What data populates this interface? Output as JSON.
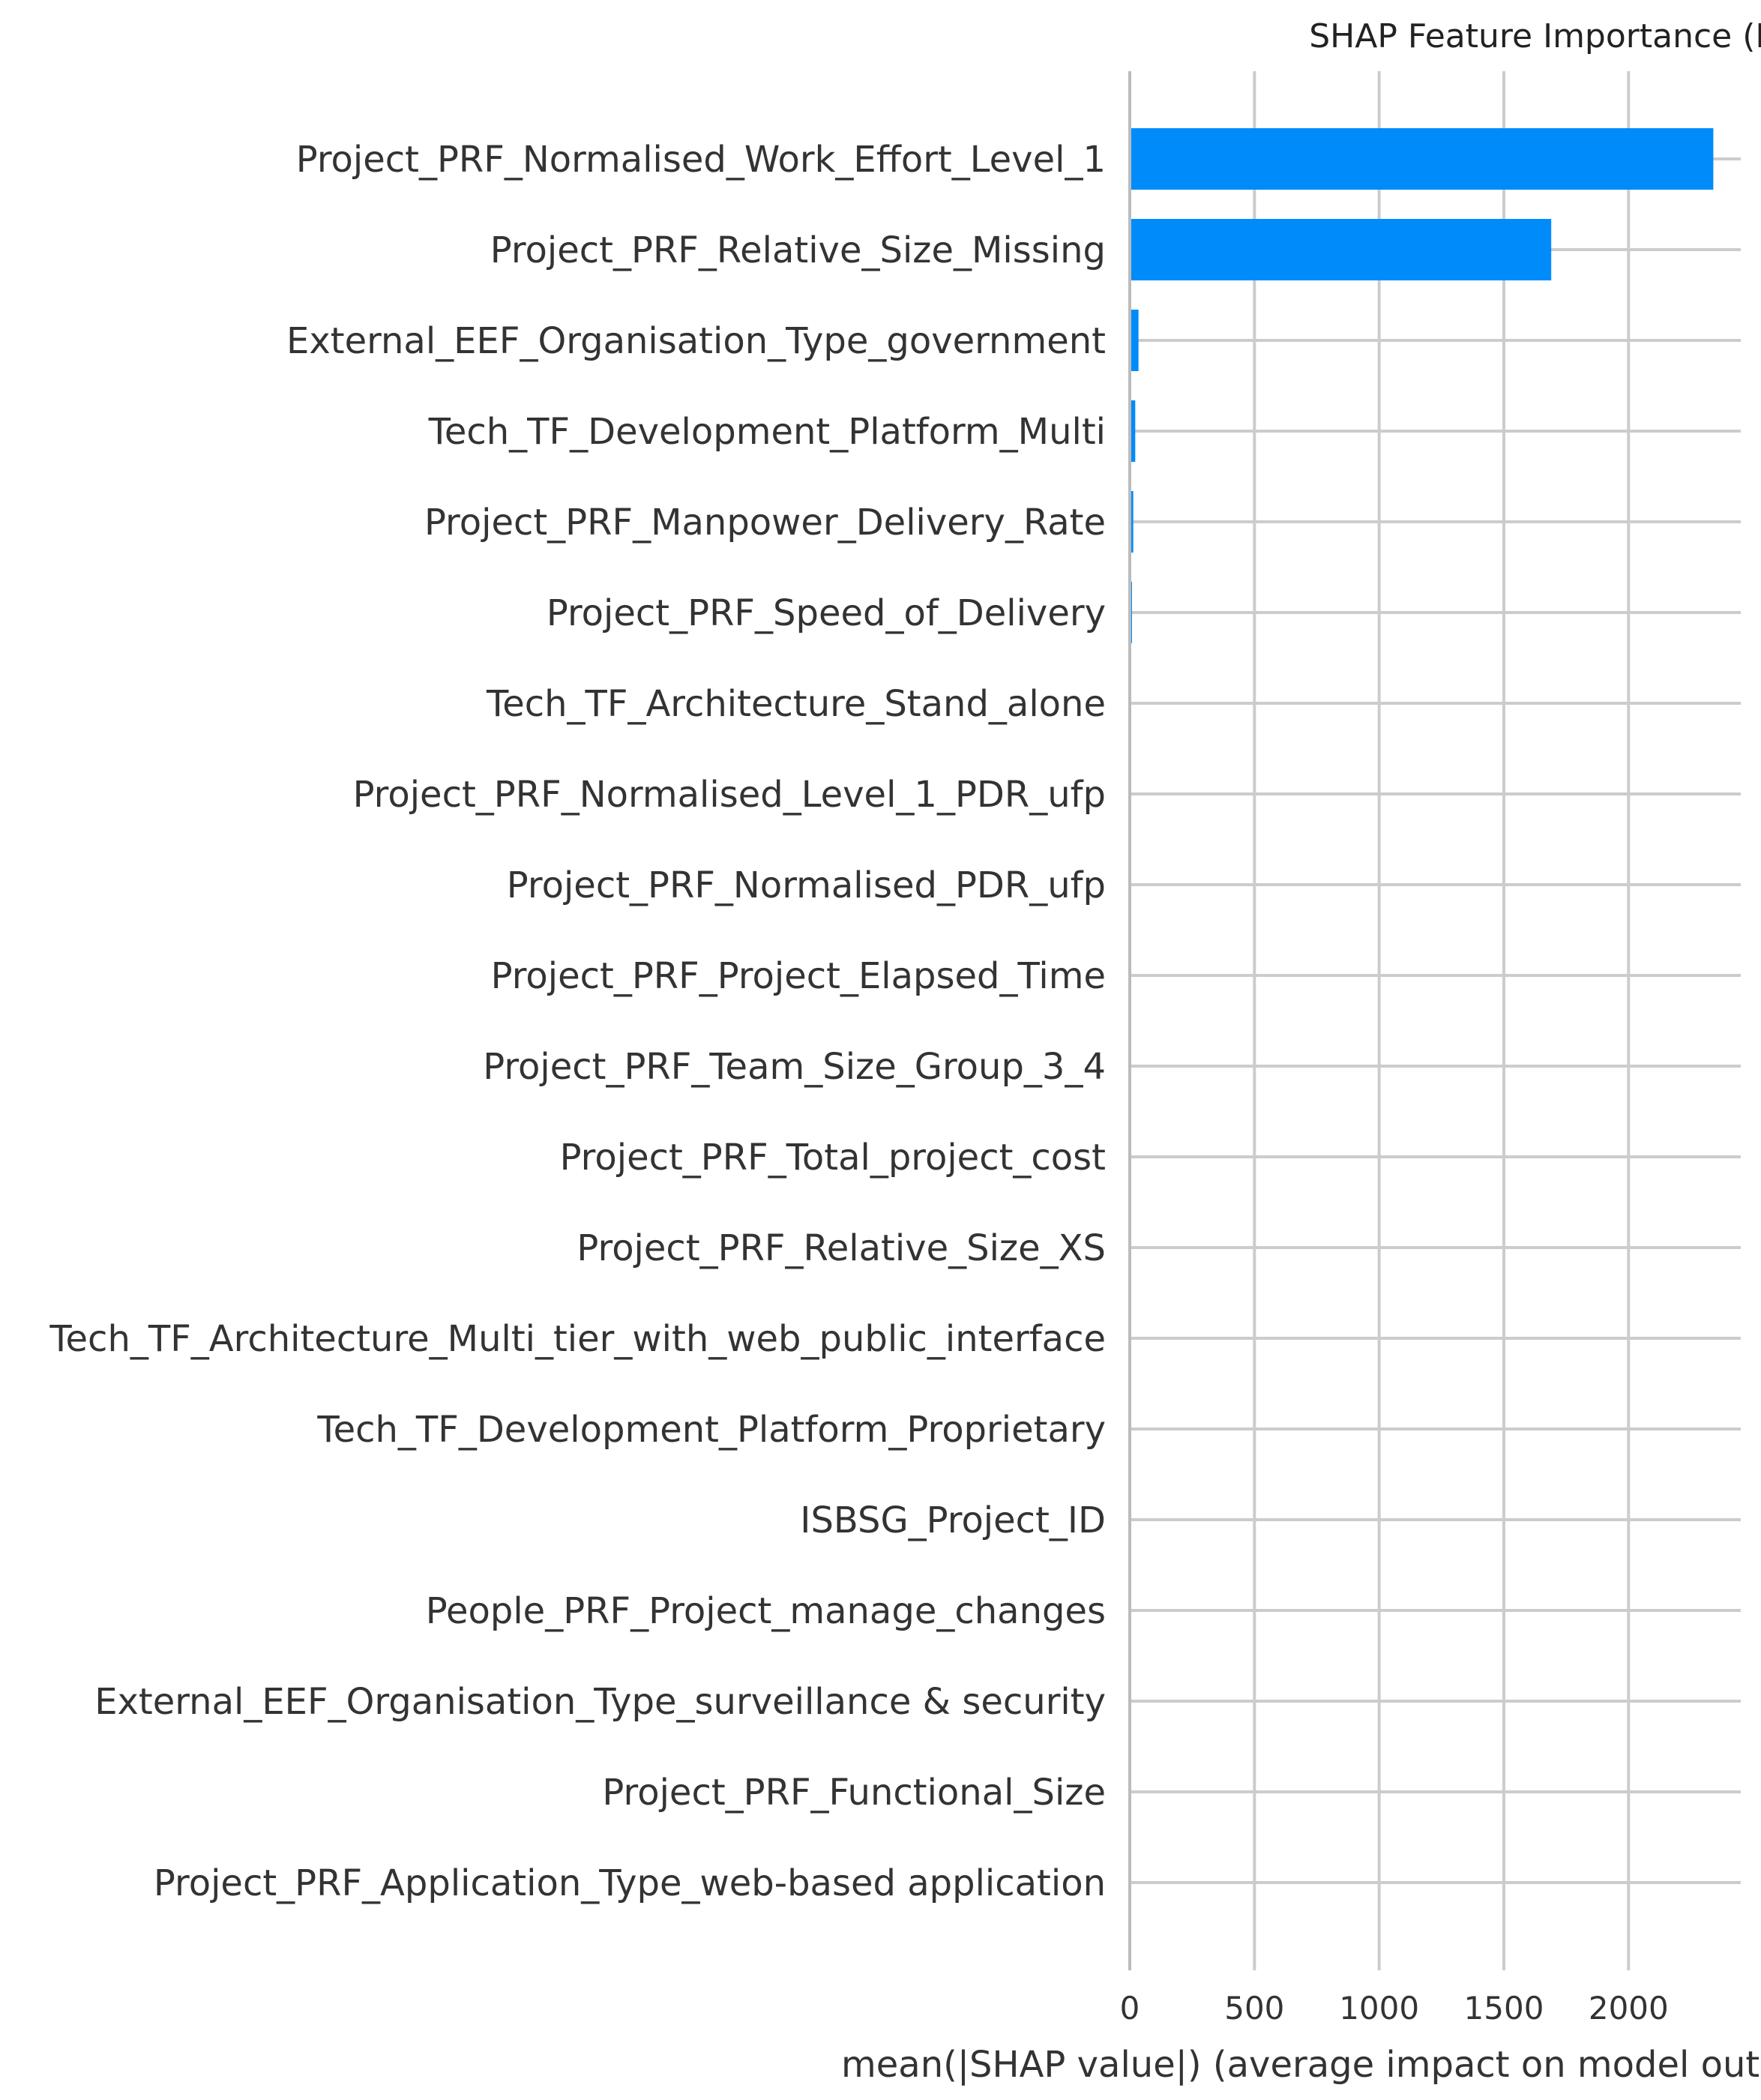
{
  "chart_data": {
    "type": "bar",
    "orientation": "horizontal",
    "title": "SHAP Feature Importance (Bar)",
    "xlabel": "mean(|SHAP value|) (average impact on model output magnitude)",
    "ylabel": "",
    "xlim": [
      0,
      2450
    ],
    "xticks": [
      0,
      500,
      1000,
      1500,
      2000
    ],
    "grid": true,
    "bar_color": "#008bfb",
    "categories": [
      "Project_PRF_Normalised_Work_Effort_Level_1",
      "Project_PRF_Relative_Size_Missing",
      "External_EEF_Organisation_Type_government",
      "Tech_TF_Development_Platform_Multi",
      "Project_PRF_Manpower_Delivery_Rate",
      "Project_PRF_Speed_of_Delivery",
      "Tech_TF_Architecture_Stand_alone",
      "Project_PRF_Normalised_Level_1_PDR_ufp",
      "Project_PRF_Normalised_PDR_ufp",
      "Project_PRF_Project_Elapsed_Time",
      "Project_PRF_Team_Size_Group_3_4",
      "Project_PRF_Total_project_cost",
      "Project_PRF_Relative_Size_XS",
      "Tech_TF_Architecture_Multi_tier_with_web_public_interface",
      "Tech_TF_Development_Platform_Proprietary",
      "ISBSG_Project_ID",
      "People_PRF_Project_manage_changes",
      "External_EEF_Organisation_Type_surveillance & security",
      "Project_PRF_Functional_Size",
      "Project_PRF_Application_Type_web-based application"
    ],
    "values": [
      2340,
      1690,
      35,
      22,
      14,
      9,
      6,
      5,
      5,
      3,
      3,
      2,
      2,
      2,
      2,
      2,
      1,
      1,
      1,
      1
    ]
  }
}
